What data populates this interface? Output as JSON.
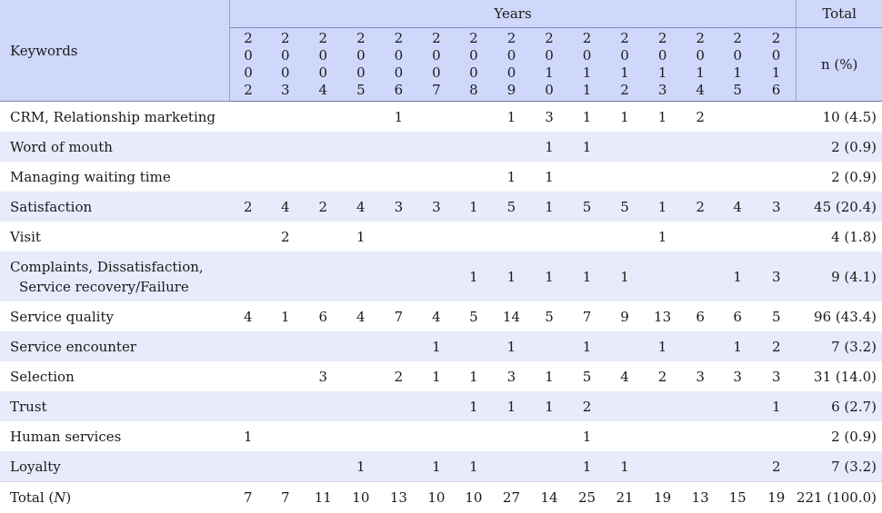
{
  "header": {
    "keywords_label": "Keywords",
    "years_label": "Years",
    "total_label": "Total",
    "n_label": "n (%)",
    "years": [
      "2002",
      "2003",
      "2004",
      "2005",
      "2006",
      "2007",
      "2008",
      "2009",
      "2010",
      "2011",
      "2012",
      "2013",
      "2014",
      "2015",
      "2016"
    ]
  },
  "rows": [
    {
      "keyword": "CRM, Relationship marketing",
      "values": [
        "",
        "",
        "",
        "",
        "1",
        "",
        "",
        "1",
        "3",
        "1",
        "1",
        "1",
        "2",
        "",
        ""
      ],
      "total": "10 (4.5)"
    },
    {
      "keyword": "Word of mouth",
      "values": [
        "",
        "",
        "",
        "",
        "",
        "",
        "",
        "",
        "1",
        "1",
        "",
        "",
        "",
        "",
        ""
      ],
      "total": "2 (0.9)"
    },
    {
      "keyword": "Managing waiting time",
      "values": [
        "",
        "",
        "",
        "",
        "",
        "",
        "",
        "1",
        "1",
        "",
        "",
        "",
        "",
        "",
        ""
      ],
      "total": "2 (0.9)"
    },
    {
      "keyword": "Satisfaction",
      "values": [
        "2",
        "4",
        "2",
        "4",
        "3",
        "3",
        "1",
        "5",
        "1",
        "5",
        "5",
        "1",
        "2",
        "4",
        "3"
      ],
      "total": "45 (20.4)"
    },
    {
      "keyword": "Visit",
      "values": [
        "",
        "2",
        "",
        "1",
        "",
        "",
        "",
        "",
        "",
        "",
        "",
        "1",
        "",
        "",
        ""
      ],
      "total": "4 (1.8)"
    },
    {
      "keyword": "Complaints, Dissatisfaction,",
      "keyword_line2": "Service recovery/Failure",
      "values": [
        "",
        "",
        "",
        "",
        "",
        "",
        "1",
        "1",
        "1",
        "1",
        "1",
        "",
        "",
        "1",
        "3"
      ],
      "total": "9 (4.1)"
    },
    {
      "keyword": "Service quality",
      "values": [
        "4",
        "1",
        "6",
        "4",
        "7",
        "4",
        "5",
        "14",
        "5",
        "7",
        "9",
        "13",
        "6",
        "6",
        "5"
      ],
      "total": "96 (43.4)"
    },
    {
      "keyword": "Service encounter",
      "values": [
        "",
        "",
        "",
        "",
        "",
        "1",
        "",
        "1",
        "",
        "1",
        "",
        "1",
        "",
        "1",
        "2"
      ],
      "total": "7 (3.2)"
    },
    {
      "keyword": "Selection",
      "values": [
        "",
        "",
        "3",
        "",
        "2",
        "1",
        "1",
        "3",
        "1",
        "5",
        "4",
        "2",
        "3",
        "3",
        "3"
      ],
      "total": "31 (14.0)"
    },
    {
      "keyword": "Trust",
      "values": [
        "",
        "",
        "",
        "",
        "",
        "",
        "1",
        "1",
        "1",
        "2",
        "",
        "",
        "",
        "",
        "1"
      ],
      "total": "6 (2.7)"
    },
    {
      "keyword": "Human services",
      "values": [
        "1",
        "",
        "",
        "",
        "",
        "",
        "",
        "",
        "",
        "1",
        "",
        "",
        "",
        "",
        ""
      ],
      "total": "2 (0.9)"
    },
    {
      "keyword": "Loyalty",
      "values": [
        "",
        "",
        "",
        "1",
        "",
        "1",
        "1",
        "",
        "",
        "1",
        "1",
        "",
        "",
        "",
        "2"
      ],
      "total": "7 (3.2)"
    }
  ],
  "totals": {
    "label": "Total (",
    "label_italic": "N",
    "label_end": ")",
    "values": [
      "7",
      "7",
      "11",
      "10",
      "13",
      "10",
      "10",
      "27",
      "14",
      "25",
      "21",
      "19",
      "13",
      "15",
      "19"
    ],
    "total": "221 (100.0)"
  }
}
